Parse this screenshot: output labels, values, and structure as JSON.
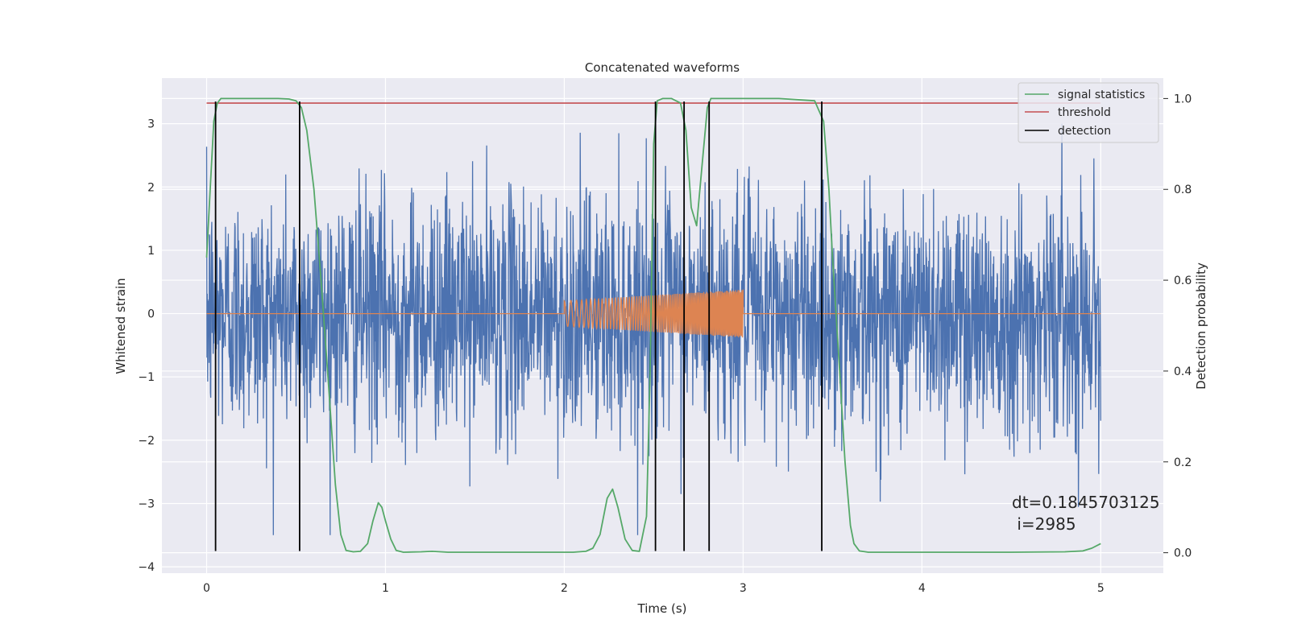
{
  "chart_data": {
    "type": "line",
    "title": "Concatenated waveforms",
    "xlabel": "Time (s)",
    "ylabel": "Whitened strain",
    "y2label": "Detection probability",
    "xlim": [
      -0.25,
      5.35
    ],
    "ylim": [
      -4.1,
      3.72
    ],
    "y2lim": [
      -0.045,
      1.045
    ],
    "xticks": [
      "0",
      "1",
      "2",
      "3",
      "4",
      "5"
    ],
    "yticks": [
      "−4",
      "−3",
      "−2",
      "−1",
      "0",
      "1",
      "2",
      "3"
    ],
    "y2ticks": [
      "0.0",
      "0.2",
      "0.4",
      "0.6",
      "0.8",
      "1.0"
    ],
    "grid": true,
    "legend_position": "top-right",
    "colors": {
      "noise": "#4c72b0",
      "waveform": "#dd8452",
      "signal_statistics": "#55a868",
      "threshold": "#c44e52",
      "detection": "#000000",
      "background": "#eaeaf2",
      "grid": "#ffffff"
    },
    "series": [
      {
        "name": "signal statistics",
        "axis": "right",
        "x": [
          0.0,
          0.02,
          0.04,
          0.06,
          0.08,
          0.12,
          0.2,
          0.3,
          0.4,
          0.46,
          0.5,
          0.53,
          0.56,
          0.6,
          0.64,
          0.68,
          0.72,
          0.75,
          0.78,
          0.82,
          0.86,
          0.9,
          0.93,
          0.96,
          0.98,
          1.0,
          1.03,
          1.06,
          1.1,
          1.2,
          1.26,
          1.35,
          1.5,
          1.8,
          2.05,
          2.12,
          2.16,
          2.2,
          2.24,
          2.27,
          2.3,
          2.34,
          2.38,
          2.42,
          2.46,
          2.48,
          2.5,
          2.52,
          2.55,
          2.6,
          2.65,
          2.68,
          2.71,
          2.74,
          2.77,
          2.8,
          2.82,
          2.85,
          2.9,
          3.0,
          3.2,
          3.4,
          3.45,
          3.48,
          3.5,
          3.54,
          3.57,
          3.6,
          3.62,
          3.65,
          3.7,
          3.8,
          4.0,
          4.5,
          4.8,
          4.9,
          4.95,
          5.0
        ],
        "values": [
          0.65,
          0.8,
          0.95,
          0.99,
          1.0,
          1.0,
          1.0,
          1.0,
          1.0,
          0.999,
          0.995,
          0.98,
          0.93,
          0.8,
          0.6,
          0.38,
          0.15,
          0.04,
          0.005,
          0.002,
          0.003,
          0.02,
          0.07,
          0.11,
          0.1,
          0.07,
          0.03,
          0.005,
          0.001,
          0.002,
          0.003,
          0.001,
          0.001,
          0.001,
          0.001,
          0.003,
          0.01,
          0.04,
          0.12,
          0.14,
          0.1,
          0.03,
          0.005,
          0.003,
          0.08,
          0.4,
          0.9,
          0.995,
          1.0,
          1.0,
          0.99,
          0.93,
          0.76,
          0.72,
          0.85,
          0.98,
          1.0,
          1.0,
          1.0,
          1.0,
          1.0,
          0.995,
          0.95,
          0.8,
          0.65,
          0.4,
          0.2,
          0.06,
          0.02,
          0.004,
          0.001,
          0.001,
          0.001,
          0.001,
          0.002,
          0.004,
          0.01,
          0.02
        ]
      },
      {
        "name": "threshold",
        "axis": "right",
        "x": [
          0,
          5
        ],
        "values": [
          0.99,
          0.99
        ]
      },
      {
        "name": "detection",
        "axis": "left",
        "type": "vlines",
        "x": [
          0.05,
          0.52,
          2.51,
          2.67,
          2.81,
          3.44
        ],
        "ymin": -3.75,
        "ymax": 3.35
      }
    ],
    "noise": {
      "x_start": 0,
      "x_end": 5,
      "amplitude_max": 3.0,
      "amplitude_min": -3.5
    },
    "injected_waveform": {
      "x_start": 2.0,
      "x_end": 3.0,
      "amplitude_start": 0.2,
      "amplitude_end": 0.38
    },
    "annotation": [
      "dt=0.1845703125",
      " i=2985"
    ]
  }
}
